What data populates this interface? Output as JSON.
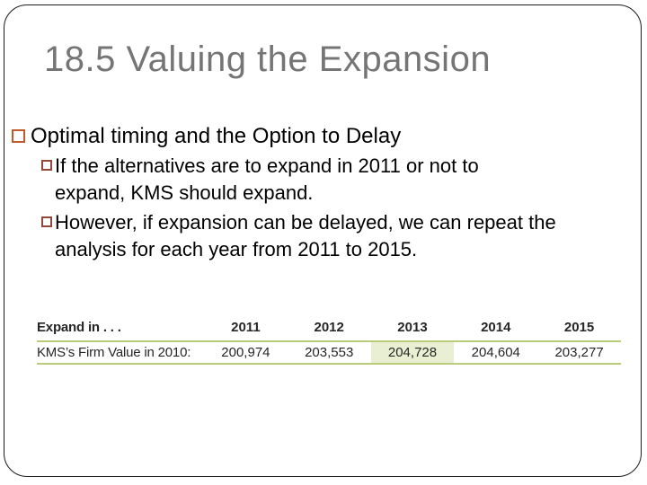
{
  "slide": {
    "title": "18.5 Valuing the Expansion",
    "bullets": [
      {
        "level": 1,
        "text": "Optimal timing and the Option to Delay"
      },
      {
        "level": 2,
        "text": "If the alternatives are to expand in 2011 or not to expand, KMS should expand."
      },
      {
        "level": 2,
        "text": "However, if expansion can be delayed, we can repeat the analysis for each year from 2011 to 2015."
      }
    ]
  },
  "exhibit_table": {
    "header_label": "Expand in . . .",
    "row_label": "KMS’s Firm Value in 2010:",
    "columns": [
      "2011",
      "2012",
      "2013",
      "2014",
      "2015"
    ],
    "values": [
      "200,974",
      "203,553",
      "204,728",
      "204,604",
      "203,277"
    ],
    "highlighted_column": "2013",
    "highlight_index": 2
  },
  "colors": {
    "title_gray": "#757575",
    "bullet_level1": "#c05a2b",
    "bullet_level2": "#94483a",
    "table_rule": "#b9cc78",
    "highlight": "#e9efd3",
    "frame": "#1b1b1b",
    "table_text": "#262626"
  }
}
